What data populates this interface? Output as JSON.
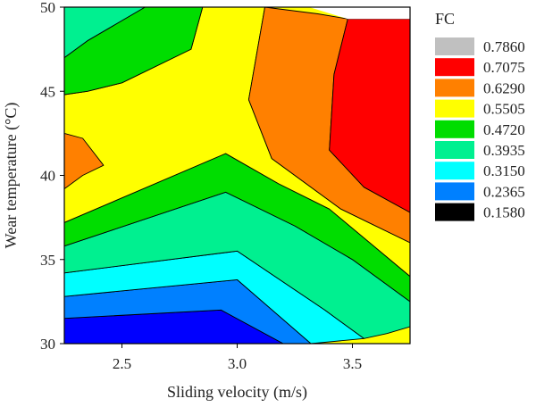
{
  "chart_data": {
    "type": "heatmap",
    "subtype": "filled-contour",
    "title": "",
    "xlabel": "Sliding velocity (m/s)",
    "ylabel": "Wear temperature (°C)",
    "xlim": [
      2.25,
      3.75
    ],
    "ylim": [
      30,
      50
    ],
    "xticks": [
      2.5,
      3.0,
      3.5
    ],
    "xtick_labels": [
      "2.5",
      "3.0",
      "3.5"
    ],
    "yticks": [
      30,
      35,
      40,
      45,
      50
    ],
    "ytick_labels": [
      "30",
      "35",
      "40",
      "45",
      "50"
    ],
    "grid": false,
    "legend_position": "right",
    "legend": {
      "title": "FC",
      "levels": [
        {
          "label": "0.7860",
          "color": "#c0c0c0"
        },
        {
          "label": "0.7075",
          "color": "#ff0000"
        },
        {
          "label": "0.6290",
          "color": "#ff8000"
        },
        {
          "label": "0.5505",
          "color": "#ffff00"
        },
        {
          "label": "0.4720",
          "color": "#00dd00"
        },
        {
          "label": "0.3935",
          "color": "#00f090"
        },
        {
          "label": "0.3150",
          "color": "#00ffff"
        },
        {
          "label": "0.2365",
          "color": "#0080ff"
        },
        {
          "label": "0.1580",
          "color": "#000000"
        }
      ]
    },
    "region_bands": [
      {
        "color": "#0000ff",
        "poly": [
          [
            2.25,
            30
          ],
          [
            3.2,
            30
          ],
          [
            2.93,
            32
          ],
          [
            2.25,
            31.5
          ]
        ]
      },
      {
        "color": "#0080ff",
        "poly": [
          [
            2.25,
            31.5
          ],
          [
            2.93,
            32
          ],
          [
            3.2,
            30
          ],
          [
            3.32,
            30
          ],
          [
            3.0,
            33.8
          ],
          [
            2.25,
            32.8
          ]
        ]
      },
      {
        "color": "#00ffff",
        "poly": [
          [
            2.25,
            32.8
          ],
          [
            3.0,
            33.8
          ],
          [
            3.32,
            30
          ],
          [
            3.55,
            30.3
          ],
          [
            3.38,
            32
          ],
          [
            3.0,
            35.5
          ],
          [
            2.25,
            34.2
          ]
        ]
      },
      {
        "color": "#00f090",
        "poly": [
          [
            2.25,
            34.2
          ],
          [
            3.0,
            35.5
          ],
          [
            3.38,
            32
          ],
          [
            3.55,
            30.3
          ],
          [
            3.65,
            30.6
          ],
          [
            3.75,
            31
          ],
          [
            3.75,
            32.5
          ],
          [
            3.5,
            35
          ],
          [
            3.25,
            37
          ],
          [
            2.95,
            39
          ],
          [
            2.25,
            35.8
          ]
        ]
      },
      {
        "color": "#00dd00",
        "poly": [
          [
            2.25,
            35.8
          ],
          [
            2.95,
            39
          ],
          [
            3.25,
            37
          ],
          [
            3.5,
            35
          ],
          [
            3.75,
            32.5
          ],
          [
            3.75,
            34
          ],
          [
            3.4,
            38
          ],
          [
            3.18,
            39.5
          ],
          [
            2.95,
            41.3
          ],
          [
            2.25,
            37.2
          ]
        ]
      },
      {
        "color": "#ffff00",
        "poly": [
          [
            2.25,
            37.2
          ],
          [
            2.95,
            41.3
          ],
          [
            3.18,
            39.5
          ],
          [
            3.4,
            38
          ],
          [
            3.75,
            34
          ],
          [
            3.75,
            36
          ],
          [
            3.45,
            38
          ],
          [
            3.15,
            41
          ],
          [
            3.05,
            44.5
          ],
          [
            3.12,
            50
          ],
          [
            2.85,
            50
          ],
          [
            2.8,
            47.5
          ],
          [
            2.5,
            45.5
          ],
          [
            2.35,
            45
          ],
          [
            2.25,
            44.8
          ]
        ]
      },
      {
        "color": "#00dd00",
        "poly": [
          [
            2.25,
            44.8
          ],
          [
            2.35,
            45
          ],
          [
            2.5,
            45.5
          ],
          [
            2.8,
            47.5
          ],
          [
            2.85,
            50
          ],
          [
            2.6,
            50
          ],
          [
            2.35,
            48
          ],
          [
            2.25,
            47
          ]
        ]
      },
      {
        "color": "#00f090",
        "poly": [
          [
            2.25,
            47
          ],
          [
            2.35,
            48
          ],
          [
            2.6,
            50
          ],
          [
            2.25,
            50
          ]
        ]
      },
      {
        "color": "#ff8000",
        "poly": [
          [
            3.12,
            50
          ],
          [
            3.05,
            44.5
          ],
          [
            3.15,
            41
          ],
          [
            3.45,
            38
          ],
          [
            3.75,
            36
          ],
          [
            3.75,
            37.8
          ],
          [
            3.55,
            39.3
          ],
          [
            3.4,
            41.5
          ],
          [
            3.42,
            46
          ],
          [
            3.48,
            49.3
          ],
          [
            3.35,
            49.6
          ]
        ]
      },
      {
        "color": "#ff0000",
        "poly": [
          [
            3.48,
            49.3
          ],
          [
            3.42,
            46
          ],
          [
            3.4,
            41.5
          ],
          [
            3.55,
            39.3
          ],
          [
            3.75,
            37.8
          ],
          [
            3.75,
            49.3
          ],
          [
            3.6,
            49.3
          ]
        ]
      },
      {
        "color": "#ff8000",
        "poly": [
          [
            2.25,
            42.5
          ],
          [
            2.33,
            42.2
          ],
          [
            2.42,
            40.6
          ],
          [
            2.33,
            40
          ],
          [
            2.25,
            39.2
          ]
        ]
      }
    ]
  }
}
